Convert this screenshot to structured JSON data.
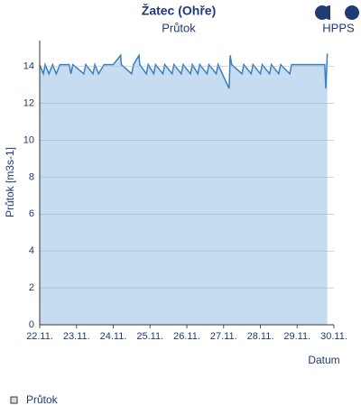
{
  "chart_data": {
    "type": "area",
    "title": "Žatec (Ohře)",
    "subtitle": "Průtok",
    "brand": "HPPS",
    "y_label": "Průtok [m3s-1]",
    "x_label": "Datum",
    "series": [
      {
        "name": "Průtok",
        "color": "#3a7fc1",
        "fill": "#c6dcf0",
        "x": [
          22.0,
          22.1,
          22.15,
          22.25,
          22.35,
          22.45,
          22.55,
          22.8,
          22.85,
          22.9,
          23.2,
          23.25,
          23.45,
          23.5,
          23.6,
          23.75,
          24.0,
          24.2,
          24.22,
          24.5,
          24.55,
          24.7,
          24.72,
          24.9,
          24.95,
          25.1,
          25.15,
          25.35,
          25.4,
          25.6,
          25.65,
          25.85,
          25.9,
          26.1,
          26.15,
          26.3,
          26.35,
          26.55,
          26.6,
          26.8,
          26.85,
          27.15,
          27.18,
          27.22,
          27.5,
          27.55,
          27.75,
          27.8,
          28.0,
          28.05,
          28.25,
          28.3,
          28.5,
          28.55,
          28.8,
          28.85,
          29.75,
          29.78,
          29.82
        ],
        "values": [
          14.1,
          13.6,
          14.1,
          13.6,
          14.1,
          13.6,
          14.1,
          14.1,
          13.6,
          14.1,
          13.6,
          14.1,
          13.6,
          14.1,
          13.6,
          14.1,
          14.1,
          14.6,
          14.1,
          13.6,
          14.1,
          14.6,
          14.1,
          13.6,
          14.1,
          13.6,
          14.1,
          13.6,
          14.1,
          13.6,
          14.1,
          13.6,
          14.1,
          13.6,
          14.1,
          13.6,
          14.1,
          13.6,
          14.1,
          13.6,
          14.1,
          12.8,
          14.6,
          14.1,
          13.6,
          14.1,
          13.6,
          14.1,
          13.6,
          14.1,
          13.6,
          14.1,
          13.6,
          14.1,
          13.6,
          14.1,
          14.1,
          12.8,
          14.7
        ]
      }
    ],
    "xlim": [
      22,
      30
    ],
    "xticks": [
      {
        "value": 22,
        "label": "22.11."
      },
      {
        "value": 23,
        "label": "23.11."
      },
      {
        "value": 24,
        "label": "24.11."
      },
      {
        "value": 25,
        "label": "25.11."
      },
      {
        "value": 26,
        "label": "26.11."
      },
      {
        "value": 27,
        "label": "27.11."
      },
      {
        "value": 28,
        "label": "28.11."
      },
      {
        "value": 29,
        "label": "29.11."
      },
      {
        "value": 30,
        "label": "30.11."
      }
    ],
    "ylim": [
      0,
      15.4
    ],
    "yticks": [
      0,
      2,
      4,
      6,
      8,
      10,
      12,
      14
    ],
    "grid": true
  }
}
